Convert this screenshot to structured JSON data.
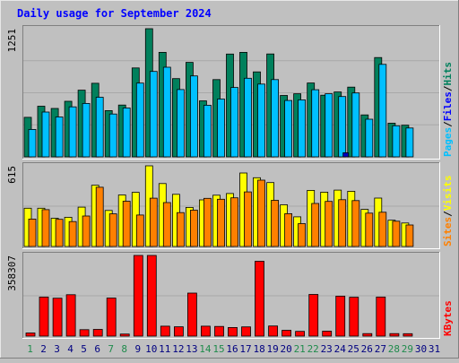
{
  "chart_data": {
    "type": "bar",
    "title": "Daily usage for September 2024",
    "categories": [
      "1",
      "2",
      "3",
      "4",
      "5",
      "6",
      "7",
      "8",
      "9",
      "10",
      "11",
      "12",
      "13",
      "14",
      "15",
      "16",
      "17",
      "18",
      "19",
      "20",
      "21",
      "22",
      "23",
      "24",
      "25",
      "26",
      "27",
      "28",
      "29",
      "30",
      "31"
    ],
    "weekend_days": [
      "1",
      "7",
      "8",
      "14",
      "15",
      "21",
      "22",
      "28",
      "29"
    ],
    "panels": [
      {
        "id": "hits-files-pages",
        "max_label": "1251",
        "ymax": 1251,
        "right_label_parts": [
          "Pages",
          "/",
          "Files",
          "/",
          "Hits"
        ],
        "series": [
          {
            "name": "Hits",
            "values": [
              386,
              494,
              472,
              542,
              651,
              718,
              451,
              506,
              868,
              1251,
              1020,
              764,
              922,
              547,
              754,
              1003,
              1020,
              829,
              1004,
              599,
              616,
              721,
              602,
              633,
              681,
              409,
              969,
              329,
              309,
              0,
              0
            ]
          },
          {
            "name": "Files",
            "values": [
              268,
              437,
              389,
              488,
              521,
              582,
              418,
              477,
              720,
              834,
              875,
              657,
              790,
              504,
              564,
              677,
              767,
              710,
              754,
              550,
              556,
              655,
              616,
              589,
              624,
              367,
              903,
              304,
              282,
              0,
              0
            ]
          },
          {
            "name": "Pages",
            "values": [
              0,
              0,
              0,
              0,
              0,
              0,
              0,
              0,
              0,
              0,
              0,
              0,
              0,
              0,
              0,
              0,
              0,
              0,
              0,
              0,
              0,
              0,
              0,
              40,
              0,
              0,
              0,
              0,
              0,
              0,
              0
            ]
          }
        ]
      },
      {
        "id": "visits-sites",
        "max_label": "615",
        "ymax": 615,
        "right_label_parts": [
          "Sites",
          "/",
          "Visits"
        ],
        "series": [
          {
            "name": "Visits",
            "values": [
              292,
              292,
              215,
              223,
              300,
              467,
              275,
              393,
              413,
              615,
              480,
              398,
              298,
              355,
              391,
              404,
              560,
              524,
              487,
              318,
              226,
              428,
              414,
              430,
              421,
              283,
              369,
              200,
              179,
              0,
              0
            ]
          },
          {
            "name": "Sites",
            "values": [
              209,
              281,
              207,
              190,
              232,
              452,
              249,
              345,
              240,
              368,
              335,
              258,
              277,
              367,
              360,
              371,
              416,
              506,
              352,
              250,
              174,
              328,
              344,
              357,
              350,
              254,
              261,
              193,
              164,
              0,
              0
            ]
          }
        ]
      },
      {
        "id": "kbytes",
        "max_label": "358307",
        "ymax": 358307,
        "right_label_parts": [
          "KBytes"
        ],
        "series": [
          {
            "name": "KBytes",
            "values": [
              13761,
              173416,
              168542,
              184032,
              28694,
              29800,
              169058,
              9043,
              358307,
              358307,
              44139,
              41269,
              191174,
              44003,
              42912,
              38232,
              40982,
              332584,
              45001,
              26049,
              21006,
              185197,
              22085,
              177437,
              172836,
              11010,
              173458,
              11023,
              10911,
              0,
              0
            ]
          }
        ]
      }
    ],
    "colors": {
      "background": "#c0c0c0",
      "panel_bg": "#c0c0c0",
      "title": "#0000ff",
      "weekday_label": "#000080",
      "weekend_label": "#1f8b4c",
      "hits": "#00805c",
      "files": "#00c0ff",
      "pages": "#00e0ff",
      "visits": "#ffff00",
      "sites": "#ff8000",
      "kbytes": "#ff0000",
      "hits_label": "#00805c",
      "files_label": "#0000ff",
      "pages_label": "#00c0ff",
      "visits_label": "#ffff00",
      "sites_label": "#ff8000",
      "kbytes_label": "#ff0000",
      "slash_label": "#000000"
    }
  }
}
